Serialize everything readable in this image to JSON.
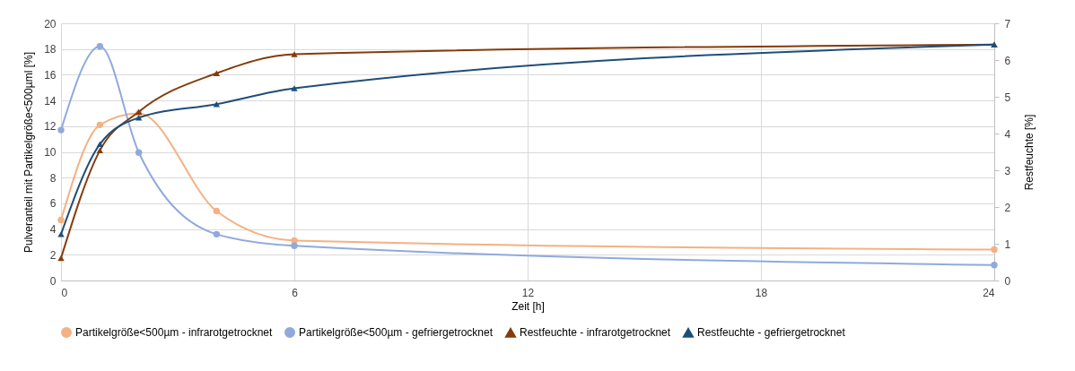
{
  "chart_data": {
    "type": "line",
    "xlabel": "Zeit [h]",
    "ylabel": "Pulveranteil mit Partikelgröße<500µml [%]",
    "y2label": "Restfeuchte [%]",
    "x": [
      0,
      1,
      2,
      4,
      6,
      24
    ],
    "xlim": [
      0,
      24
    ],
    "xticks": [
      0,
      6,
      12,
      18,
      24
    ],
    "ylim": [
      0,
      20
    ],
    "yticks": [
      0,
      2,
      4,
      6,
      8,
      10,
      12,
      14,
      16,
      18,
      20
    ],
    "y2lim": [
      0,
      7
    ],
    "y2ticks": [
      0,
      1,
      2,
      3,
      4,
      5,
      6,
      7
    ],
    "grid": true,
    "legend": "bottom",
    "series": [
      {
        "name": "Partikelgröße<500µm - infrarotgetrocknet",
        "color": "#f4b183",
        "marker": "circle",
        "values": [
          4.7,
          12.1,
          13.0,
          5.4,
          3.1,
          2.4
        ]
      },
      {
        "name": "Partikelgröße<500µm - gefriergetrocknet",
        "color": "#8faadc",
        "marker": "circle",
        "values": [
          11.7,
          18.2,
          9.95,
          3.6,
          2.7,
          1.2
        ]
      },
      {
        "name": "Restfeuchte - infrarotgetrocknet",
        "color": "#843c0c",
        "marker": "triangle",
        "axis": "y2",
        "values": [
          0.61,
          3.54,
          4.59,
          5.64,
          6.16,
          6.42
        ]
      },
      {
        "name": "Restfeuchte - gefriergetrocknet",
        "color": "#1f4e79",
        "marker": "triangle",
        "axis": "y2",
        "values": [
          1.26,
          3.71,
          4.43,
          4.8,
          5.23,
          6.42
        ]
      }
    ]
  }
}
